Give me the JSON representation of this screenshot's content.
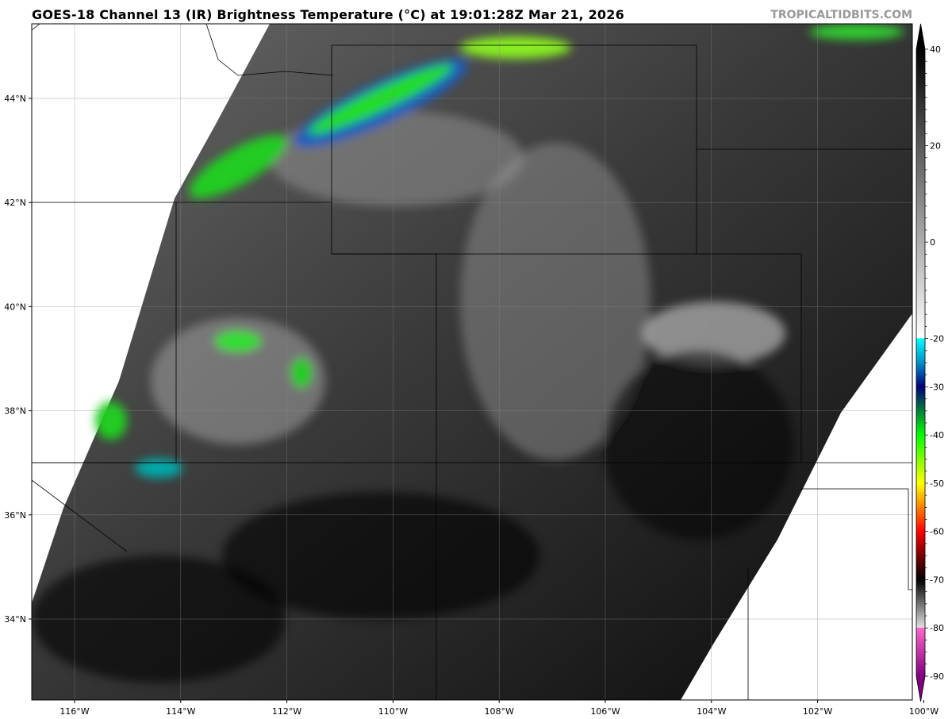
{
  "header": {
    "title": "GOES-18 Channel 13 (IR) Brightness Temperature (°C) at 19:01:28Z Mar 21, 2026",
    "brand": "TROPICALTIDBITS.COM"
  },
  "map": {
    "latitude_labels": [
      {
        "value": 44,
        "label": "44°N"
      },
      {
        "value": 42,
        "label": "42°N"
      },
      {
        "value": 40,
        "label": "40°N"
      },
      {
        "value": 38,
        "label": "38°N"
      },
      {
        "value": 36,
        "label": "36°N"
      },
      {
        "value": 34,
        "label": "34°N"
      }
    ],
    "longitude_labels": [
      {
        "value": -116,
        "label": "116°W"
      },
      {
        "value": -114,
        "label": "114°W"
      },
      {
        "value": -112,
        "label": "112°W"
      },
      {
        "value": -110,
        "label": "110°W"
      },
      {
        "value": -108,
        "label": "108°W"
      },
      {
        "value": -106,
        "label": "106°W"
      },
      {
        "value": -104,
        "label": "104°W"
      },
      {
        "value": -102,
        "label": "102°W"
      },
      {
        "value": -100,
        "label": "100°W"
      }
    ],
    "extent": {
      "lon": [
        -116.8,
        -99.9
      ],
      "lat": [
        32.5,
        45.4
      ]
    },
    "background_color": "#ffffff"
  },
  "colorbar": {
    "range": [
      -90,
      40
    ],
    "tick_labels": [
      "40",
      "20",
      "0",
      "-20",
      "-30",
      "-40",
      "-50",
      "-60",
      "-70",
      "-80",
      "-90"
    ],
    "tick_values": [
      40,
      20,
      0,
      -20,
      -30,
      -40,
      -50,
      -60,
      -70,
      -80,
      -90
    ],
    "stops": [
      {
        "value": 40,
        "color": "#000000"
      },
      {
        "value": 20,
        "color": "#5a5a5a"
      },
      {
        "value": -19.9,
        "color": "#ffffff"
      },
      {
        "value": -20,
        "color": "#00ffff"
      },
      {
        "value": -25,
        "color": "#0090c8"
      },
      {
        "value": -30,
        "color": "#00007a"
      },
      {
        "value": -35,
        "color": "#00803a"
      },
      {
        "value": -40,
        "color": "#00ff00"
      },
      {
        "value": -50,
        "color": "#ffff00"
      },
      {
        "value": -55,
        "color": "#ff8000"
      },
      {
        "value": -60,
        "color": "#ff0000"
      },
      {
        "value": -66,
        "color": "#600000"
      },
      {
        "value": -70,
        "color": "#000000"
      },
      {
        "value": -79.9,
        "color": "#e0e0e0"
      },
      {
        "value": -80,
        "color": "#ff66cc"
      },
      {
        "value": -90,
        "color": "#800080"
      }
    ]
  }
}
